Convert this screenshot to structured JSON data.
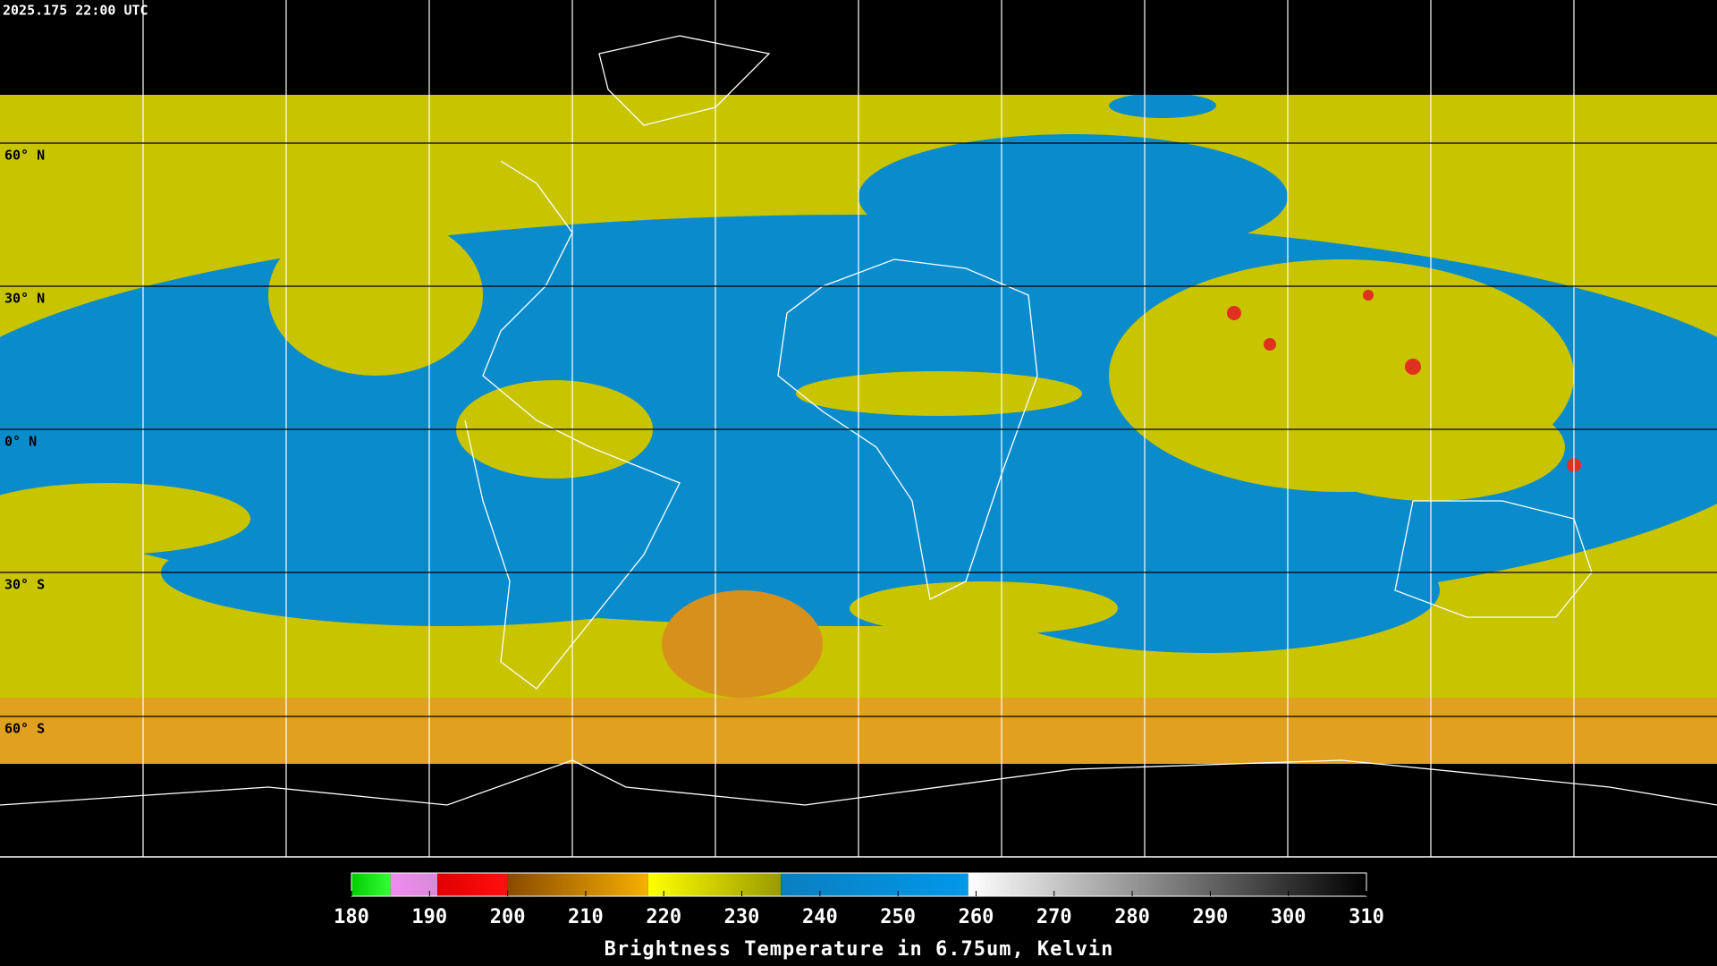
{
  "header": {
    "timestamp": "2025.175 22:00 UTC"
  },
  "latitude_labels": [
    "60° N",
    "30° N",
    "0° N",
    "30° S",
    "60° S"
  ],
  "colorbar": {
    "title": "Brightness Temperature in 6.75um, Kelvin",
    "lim": [
      180,
      310
    ],
    "ticks": [
      180,
      190,
      200,
      210,
      220,
      230,
      240,
      250,
      260,
      270,
      280,
      290,
      300,
      310
    ],
    "segments": [
      {
        "from": 180,
        "to": 185,
        "colors": [
          "#00cc00",
          "#33ff33"
        ]
      },
      {
        "from": 185,
        "to": 191,
        "colors": [
          "#f08cf0",
          "#d88ad8"
        ]
      },
      {
        "from": 191,
        "to": 200,
        "colors": [
          "#e00000",
          "#ff1010"
        ]
      },
      {
        "from": 200,
        "to": 218,
        "colors": [
          "#8a4a00",
          "#f5b000"
        ]
      },
      {
        "from": 218,
        "to": 235,
        "colors": [
          "#ffff00",
          "#9a9a00"
        ]
      },
      {
        "from": 235,
        "to": 259,
        "colors": [
          "#0a7fc0",
          "#0098e8"
        ]
      },
      {
        "from": 259,
        "to": 310,
        "colors": [
          "#ffffff",
          "#000000"
        ]
      }
    ]
  }
}
